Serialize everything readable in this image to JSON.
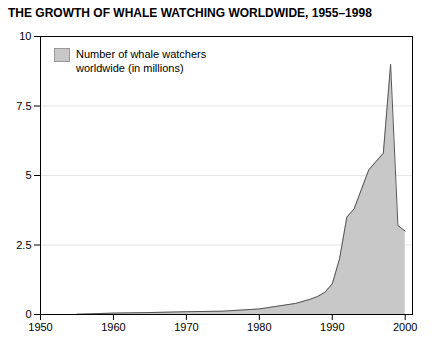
{
  "chart_data": {
    "type": "area",
    "title": "THE GROWTH OF WHALE WATCHING WORLDWIDE, 1955–1998",
    "x": [
      1955,
      1960,
      1965,
      1970,
      1975,
      1980,
      1985,
      1987,
      1988,
      1989,
      1990,
      1991,
      1992,
      1993,
      1994,
      1995,
      1996,
      1997,
      1998,
      1999,
      2000
    ],
    "series": [
      {
        "name": "Number of whale watchers\nworldwide (in millions)",
        "color": "#c8c8c8",
        "values": [
          0.01,
          0.05,
          0.07,
          0.1,
          0.12,
          0.2,
          0.4,
          0.55,
          0.65,
          0.8,
          1.1,
          2.0,
          3.5,
          3.8,
          4.5,
          5.2,
          5.5,
          5.8,
          9.0,
          3.2,
          3.0
        ]
      }
    ],
    "xlim": [
      1950,
      2001
    ],
    "ylim": [
      0,
      10
    ],
    "xticks": [
      1950,
      1960,
      1970,
      1980,
      1990,
      2000
    ],
    "yticks": [
      0,
      2.5,
      5,
      7.5,
      10
    ],
    "grid": true,
    "legend": "upper left"
  }
}
